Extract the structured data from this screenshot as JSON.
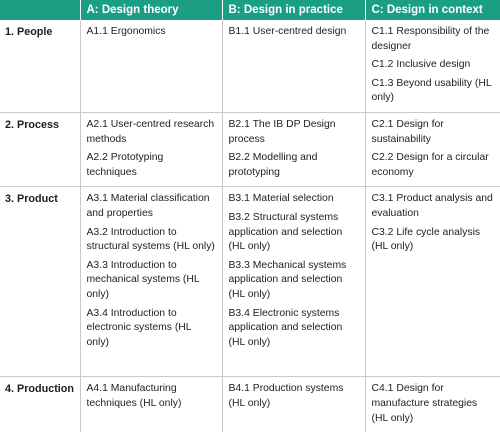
{
  "header": {
    "corner": "",
    "columns": [
      "A: Design theory",
      "B: Design in practice",
      "C: Design in context"
    ]
  },
  "rows": [
    {
      "label": "1. People",
      "cells": [
        [
          "A1.1 Ergonomics"
        ],
        [
          "B1.1 User-centred design"
        ],
        [
          "C1.1 Responsibility of the designer",
          "C1.2 Inclusive design",
          "C1.3 Beyond usability (HL only)"
        ]
      ]
    },
    {
      "label": "2. Process",
      "cells": [
        [
          "A2.1 User-centred research methods",
          "A2.2 Prototyping techniques"
        ],
        [
          "B2.1 The IB DP Design process",
          "B2.2 Modelling and prototyping"
        ],
        [
          "C2.1 Design for sustainability",
          "C2.2 Design for a circular economy"
        ]
      ]
    },
    {
      "label": "3. Product",
      "cells": [
        [
          "A3.1 Material classification and properties",
          "A3.2 Introduction to structural systems (HL only)",
          "A3.3 Introduction to mechanical systems (HL only)",
          "A3.4 Introduction to electronic systems (HL only)"
        ],
        [
          "B3.1 Material selection",
          "B3.2 Structural systems application and selection (HL only)",
          "B3.3 Mechanical systems application and selection (HL only)",
          "B3.4 Electronic systems application and selection (HL only)"
        ],
        [
          "C3.1 Product analysis and evaluation",
          "C3.2 Life cycle analysis (HL only)"
        ]
      ]
    },
    {
      "label": "4. Production",
      "cells": [
        [
          "A4.1 Manufacturing techniques (HL only)"
        ],
        [
          "B4.1 Production systems (HL only)"
        ],
        [
          "C4.1 Design for manufacture strategies (HL only)"
        ]
      ]
    }
  ]
}
